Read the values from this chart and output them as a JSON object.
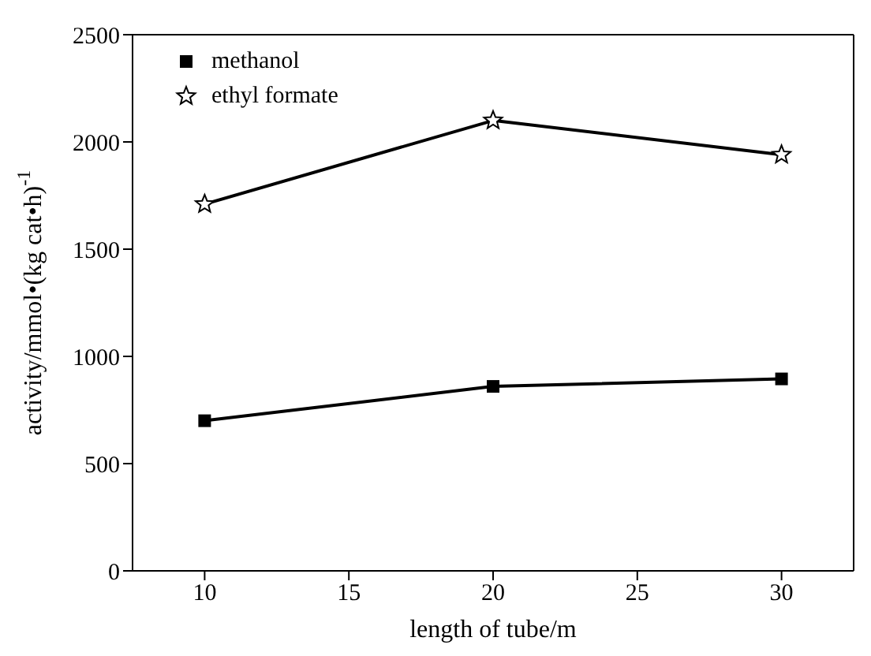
{
  "chart_data": {
    "type": "line",
    "xlabel": "length of tube/m",
    "ylabel": "activity/mmol•(kg cat•h)$^{-1}$",
    "x": [
      10,
      20,
      30
    ],
    "series": [
      {
        "name": "methanol",
        "color": "#000000",
        "marker": "square",
        "values": [
          700,
          860,
          895
        ]
      },
      {
        "name": "ethyl formate",
        "color": "#000000",
        "marker": "star",
        "values": [
          1710,
          2100,
          1940
        ]
      }
    ],
    "xlim": [
      7.5,
      32.5
    ],
    "xticks": [
      10,
      15,
      20,
      25,
      30
    ],
    "ylim": [
      0,
      2500
    ],
    "yticks": [
      0,
      500,
      1000,
      1500,
      2000,
      2500
    ],
    "legend": "top left",
    "line_style": "solid"
  }
}
